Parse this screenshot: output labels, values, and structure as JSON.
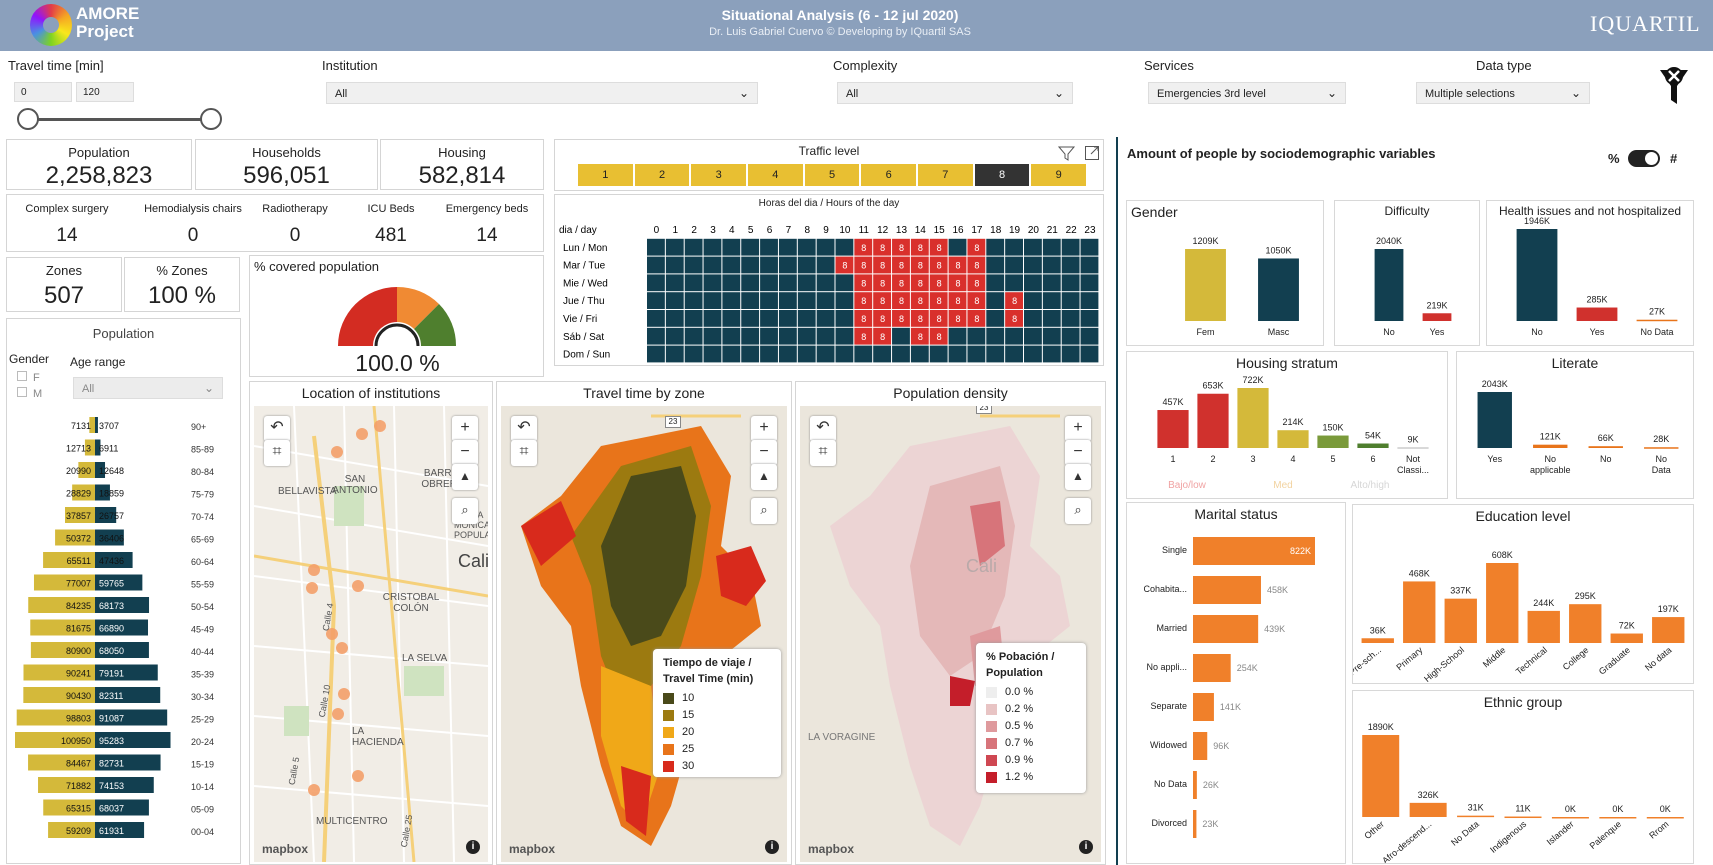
{
  "header": {
    "app_name": "AMORE Project",
    "title": "Situational Analysis  (6 - 12 jul 2020)",
    "subtitle": "Dr. Luis Gabriel Cuervo © Developing by IQuartil SAS",
    "brand": "IQUARTIL"
  },
  "filters": {
    "travel_time": {
      "label": "Travel time [min]",
      "min": "0",
      "max": "120"
    },
    "institution": {
      "label": "Institution",
      "value": "All"
    },
    "complexity": {
      "label": "Complexity",
      "value": "All"
    },
    "services": {
      "label": "Services",
      "value": "Emergencies 3rd level"
    },
    "data_type": {
      "label": "Data type",
      "value": "Multiple selections"
    }
  },
  "kpis": [
    {
      "label": "Population",
      "value": "2,258,823"
    },
    {
      "label": "Households",
      "value": "596,051"
    },
    {
      "label": "Housing",
      "value": "582,814"
    }
  ],
  "resources": [
    {
      "label": "Complex surgery",
      "value": "14"
    },
    {
      "label": "Hemodialysis chairs",
      "value": "0"
    },
    {
      "label": "Radiotherapy",
      "value": "0"
    },
    {
      "label": "ICU Beds",
      "value": "481"
    },
    {
      "label": "Emergency beds",
      "value": "14"
    }
  ],
  "zones": {
    "label": "Zones",
    "value": "507",
    "pct_label": "% Zones",
    "pct_value": "100 %"
  },
  "coverage": {
    "label": "% covered population",
    "value": "100.0 %",
    "fraction": 1.0
  },
  "pyramid": {
    "title": "Population",
    "gender_label": "Gender",
    "gender_options": [
      "F",
      "M"
    ],
    "age_label": "Age range",
    "age_value": "All",
    "chart_data": {
      "type": "bar",
      "orientation": "population-pyramid",
      "categories": [
        "90+",
        "85-89",
        "80-84",
        "75-79",
        "70-74",
        "65-69",
        "60-64",
        "55-59",
        "50-54",
        "45-49",
        "40-44",
        "35-39",
        "30-34",
        "25-29",
        "20-24",
        "15-19",
        "10-14",
        "05-09",
        "00-04"
      ],
      "series": [
        {
          "name": "F",
          "values": [
            7131,
            12713,
            20990,
            28829,
            37857,
            50372,
            65511,
            77007,
            84235,
            81675,
            80900,
            90241,
            90430,
            98803,
            100950,
            84467,
            71882,
            65315,
            59209
          ],
          "color": "#d4b93a"
        },
        {
          "name": "M",
          "values": [
            3707,
            6911,
            12648,
            18859,
            26757,
            36406,
            47436,
            59765,
            68173,
            66890,
            68050,
            79191,
            82311,
            91087,
            95283,
            82731,
            74153,
            68037,
            61931
          ],
          "color": "#123f50"
        }
      ]
    }
  },
  "traffic": {
    "title": "Traffic level",
    "levels": [
      "1",
      "2",
      "3",
      "4",
      "5",
      "6",
      "7",
      "8",
      "9"
    ],
    "selected_level": "8",
    "grid_title": "Horas del dia / Hours of the day",
    "corner": "dia / day",
    "hours": [
      "0",
      "1",
      "2",
      "3",
      "4",
      "5",
      "6",
      "7",
      "8",
      "9",
      "10",
      "11",
      "12",
      "13",
      "14",
      "15",
      "16",
      "17",
      "18",
      "19",
      "20",
      "21",
      "22",
      "23"
    ],
    "days": [
      "Lun / Mon",
      "Mar /  Tue",
      "Mie / Wed",
      "Jue / Thu",
      "Vie / Fri",
      "Sáb / Sat",
      "Dom / Sun"
    ],
    "cell_value": "8",
    "highlight": [
      [
        11,
        12,
        13,
        14,
        15,
        17
      ],
      [
        10,
        11,
        12,
        13,
        14,
        15,
        16,
        17
      ],
      [
        11,
        12,
        13,
        14,
        15,
        16,
        17
      ],
      [
        11,
        12,
        13,
        14,
        15,
        16,
        17,
        19
      ],
      [
        11,
        12,
        13,
        14,
        15,
        16,
        17,
        19
      ],
      [
        11,
        12,
        14,
        15
      ],
      []
    ]
  },
  "maps": [
    {
      "title": "Location of institutions",
      "labels": [
        "BARRIO OBRERO",
        "SAN ANTONIO",
        "BELLAVISTA",
        "SANTA MÓNICA POPULAR",
        "Cali",
        "CRISTOBAL COLÓN",
        "LA SELVA",
        "LA HACIENDA",
        "MULTICENTRO",
        "Calle 5",
        "Calle 10",
        "Calle 25",
        "Calle 4"
      ]
    },
    {
      "title": "Travel time by zone",
      "legend_title": "Tiempo de viaje / Travel Time (min)",
      "legend": [
        {
          "label": "10",
          "color": "#4a4a1a"
        },
        {
          "label": "15",
          "color": "#9c7a10"
        },
        {
          "label": "20",
          "color": "#f0a818"
        },
        {
          "label": "25",
          "color": "#e8741a"
        },
        {
          "label": "30",
          "color": "#d82a1c"
        }
      ],
      "road": "23"
    },
    {
      "title": "Population density",
      "legend_title": "% Pobación / Population",
      "legend": [
        {
          "label": "0.0 %",
          "color": "#eeeeee"
        },
        {
          "label": "0.2 %",
          "color": "#e8c4c4"
        },
        {
          "label": "0.5 %",
          "color": "#df9a9d"
        },
        {
          "label": "0.7 %",
          "color": "#d7747a"
        },
        {
          "label": "0.9 %",
          "color": "#cf4752"
        },
        {
          "label": "1.2 %",
          "color": "#c41e2a"
        }
      ],
      "labels": [
        "Cali",
        "LA VORAGINE"
      ],
      "road": "23"
    }
  ],
  "mapbox": "mapbox",
  "socio": {
    "title": "Amount of people by sociodemographic variables",
    "toggle_left": "%",
    "toggle_right": "#"
  },
  "gender_chart": {
    "title": "Gender",
    "chart_data": {
      "type": "bar",
      "categories": [
        "Fem",
        "Masc"
      ],
      "values": [
        1209,
        1050
      ],
      "labels": [
        "1209K",
        "1050K"
      ],
      "colors": [
        "#d4b93a",
        "#123f50"
      ]
    }
  },
  "difficulty_chart": {
    "title": "Difficulty",
    "chart_data": {
      "type": "bar",
      "categories": [
        "No",
        "Yes"
      ],
      "values": [
        2040,
        219
      ],
      "labels": [
        "2040K",
        "219K"
      ],
      "colors": [
        "#123f50",
        "#d0312d"
      ]
    }
  },
  "health_chart": {
    "title": "Health issues and not hospitalized",
    "chart_data": {
      "type": "bar",
      "categories": [
        "No",
        "Yes",
        "No Data"
      ],
      "values": [
        1946,
        285,
        27
      ],
      "labels": [
        "1946K",
        "285K",
        "27K"
      ],
      "colors": [
        "#123f50",
        "#d0312d",
        "#e8741a"
      ]
    }
  },
  "housing_chart": {
    "title": "Housing stratum",
    "chart_data": {
      "type": "bar",
      "categories": [
        "1",
        "2",
        "3",
        "4",
        "5",
        "6",
        "Not Classi..."
      ],
      "values": [
        457,
        653,
        722,
        214,
        150,
        54,
        9
      ],
      "labels": [
        "457K",
        "653K",
        "722K",
        "214K",
        "150K",
        "54K",
        "9K"
      ],
      "colors": [
        "#d0312d",
        "#d0312d",
        "#d4b93a",
        "#d4b93a",
        "#7a9a3a",
        "#4f7f2e",
        "#cccccc"
      ]
    },
    "group_labels": [
      "Bajo/low",
      "Med",
      "Alto/high"
    ]
  },
  "literate_chart": {
    "title": "Literate",
    "chart_data": {
      "type": "bar",
      "categories": [
        "Yes",
        "No applicable",
        "No",
        "No Data"
      ],
      "values": [
        2043,
        121,
        66,
        28
      ],
      "labels": [
        "2043K",
        "121K",
        "66K",
        "28K"
      ],
      "colors": [
        "#123f50",
        "#e8741a",
        "#e8741a",
        "#e8741a"
      ]
    }
  },
  "marital_chart": {
    "title": "Marital status",
    "chart_data": {
      "type": "bar",
      "orientation": "horizontal",
      "categories": [
        "Single",
        "Cohabita...",
        "Married",
        "No appli...",
        "Separate",
        "Widowed",
        "No Data",
        "Divorced"
      ],
      "values": [
        822,
        458,
        439,
        254,
        141,
        96,
        26,
        23
      ],
      "labels": [
        "822K",
        "458K",
        "439K",
        "254K",
        "141K",
        "96K",
        "26K",
        "23K"
      ],
      "color": "#f0802a"
    }
  },
  "education_chart": {
    "title": "Education level",
    "chart_data": {
      "type": "bar",
      "categories": [
        "Pre-sch...",
        "Primary",
        "High-School",
        "Middle",
        "Technical",
        "College",
        "Graduate",
        "No data"
      ],
      "values": [
        36,
        468,
        337,
        608,
        244,
        295,
        72,
        197
      ],
      "labels": [
        "36K",
        "468K",
        "337K",
        "608K",
        "244K",
        "295K",
        "72K",
        "197K"
      ],
      "color": "#f0802a"
    }
  },
  "ethnic_chart": {
    "title": "Ethnic group",
    "chart_data": {
      "type": "bar",
      "categories": [
        "Other",
        "Afro-descend...",
        "No Data",
        "Indigenous",
        "Islander",
        "Palenque",
        "Rrom"
      ],
      "values": [
        1890,
        326,
        31,
        11,
        0,
        0,
        0
      ],
      "labels": [
        "1890K",
        "326K",
        "31K",
        "11K",
        "0K",
        "0K",
        "0K"
      ],
      "color": "#f0802a"
    }
  }
}
